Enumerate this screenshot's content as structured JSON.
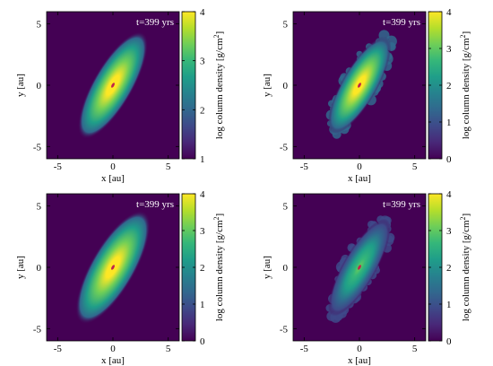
{
  "figure": {
    "panels_note": "",
    "colormap": [
      "#440154",
      "#482878",
      "#3e4989",
      "#31688e",
      "#26828e",
      "#1f9e89",
      "#35b779",
      "#6ece58",
      "#b5de2b",
      "#fde725"
    ],
    "background_color": "#440154",
    "center_color": "#c0234a"
  },
  "chart_data": [
    {
      "type": "heatmap",
      "annotation": "t=399 yrs",
      "xlabel": "x [au]",
      "ylabel": "y [au]",
      "colorbar_label": "log column density [g/cm",
      "colorbar_label_sup": "2",
      "colorbar_label_end": "]",
      "xlim": [
        -6,
        6
      ],
      "ylim": [
        -6,
        6
      ],
      "xticks": [
        "-5",
        "0",
        "5"
      ],
      "yticks": [
        "5",
        "0",
        "-5"
      ],
      "clim": [
        1,
        4
      ],
      "cticks": [
        "4",
        "3",
        "2",
        "1"
      ],
      "disk": {
        "peak_log_density": 4,
        "tilt_deg": -60,
        "semi_major_au": 5.5,
        "semi_minor_au": 1.8,
        "edge": "smooth"
      }
    },
    {
      "type": "heatmap",
      "annotation": "t=399 yrs",
      "xlabel": "x [au]",
      "ylabel": "y [au]",
      "colorbar_label": "log column density [g/cm",
      "colorbar_label_sup": "2",
      "colorbar_label_end": "]",
      "xlim": [
        -6,
        6
      ],
      "ylim": [
        -6,
        6
      ],
      "xticks": [
        "-5",
        "0",
        "5"
      ],
      "yticks": [
        "5",
        "0",
        "-5"
      ],
      "clim": [
        0,
        4
      ],
      "cticks": [
        "4",
        "3",
        "2",
        "1",
        "0"
      ],
      "disk": {
        "peak_log_density": 4,
        "tilt_deg": -60,
        "semi_major_au": 5.0,
        "semi_minor_au": 1.6,
        "edge": "clumpy"
      }
    },
    {
      "type": "heatmap",
      "annotation": "t=399 yrs",
      "xlabel": "x [au]",
      "ylabel": "y [au]",
      "colorbar_label": "log column density [g/cm",
      "colorbar_label_sup": "2",
      "colorbar_label_end": "]",
      "xlim": [
        -6,
        6
      ],
      "ylim": [
        -6,
        6
      ],
      "xticks": [
        "-5",
        "0",
        "5"
      ],
      "yticks": [
        "5",
        "0",
        "-5"
      ],
      "clim": [
        0,
        4
      ],
      "cticks": [
        "4",
        "3",
        "2",
        "1",
        "0"
      ],
      "disk": {
        "peak_log_density": 4,
        "tilt_deg": -60,
        "semi_major_au": 5.8,
        "semi_minor_au": 2.0,
        "edge": "smooth"
      }
    },
    {
      "type": "heatmap",
      "annotation": "t=399 yrs",
      "xlabel": "x [au]",
      "ylabel": "y [au]",
      "colorbar_label": "log column density [g/cm",
      "colorbar_label_sup": "2",
      "colorbar_label_end": "]",
      "xlim": [
        -6,
        6
      ],
      "ylim": [
        -6,
        6
      ],
      "xticks": [
        "-5",
        "0",
        "5"
      ],
      "yticks": [
        "5",
        "0",
        "-5"
      ],
      "clim": [
        0,
        4
      ],
      "cticks": [
        "4",
        "3",
        "2",
        "1",
        "0"
      ],
      "disk": {
        "peak_log_density": 3,
        "tilt_deg": -60,
        "semi_major_au": 5.0,
        "semi_minor_au": 1.5,
        "edge": "clumpy"
      }
    }
  ]
}
